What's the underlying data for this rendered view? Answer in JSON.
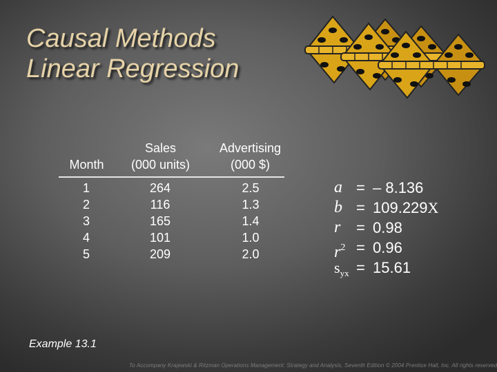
{
  "title": {
    "line1": "Causal Methods",
    "line2": "Linear Regression"
  },
  "table": {
    "headers": {
      "month": [
        "Month"
      ],
      "sales": [
        "Sales",
        "(000 units)"
      ],
      "advertising": [
        "Advertising",
        "(000 $)"
      ]
    },
    "months": [
      "1",
      "2",
      "3",
      "4",
      "5"
    ],
    "sales": [
      "264",
      "116",
      "165",
      "101",
      "209"
    ],
    "advertising": [
      "2.5",
      "1.3",
      "1.4",
      "1.0",
      "2.0"
    ]
  },
  "stats": {
    "a": {
      "symbol": "a",
      "eq": "=",
      "value": "– 8.136"
    },
    "b": {
      "symbol": "b",
      "eq": "=",
      "value": "109.229",
      "suffix": "X"
    },
    "r": {
      "symbol": "r",
      "eq": "=",
      "value": "0.98"
    },
    "r2": {
      "symbol": "r",
      "sup": "2",
      "eq": "=",
      "value": "0.96"
    },
    "syx": {
      "symbol": "s",
      "sub": "yx",
      "eq": "=",
      "value": "15.61"
    }
  },
  "example_label": "Example 13.1",
  "footer": "To Accompany Krajewski & Ritzman Operations Management: Strategy and Analysis, Seventh Edition © 2004 Prentice Hall, Inc. All rights reserved.",
  "colors": {
    "title": "#e6d3a8",
    "hinge": "#d9a418",
    "text": "#ffffff"
  },
  "icons": [
    "hinge-icon",
    "hinge-icon",
    "hinge-icon"
  ]
}
